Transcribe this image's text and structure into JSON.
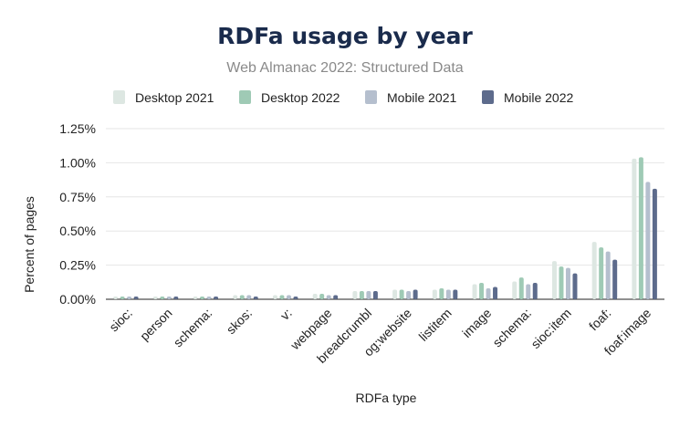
{
  "chart_data": {
    "type": "bar",
    "title": "RDFa usage by year",
    "subtitle": "Web Almanac 2022: Structured Data",
    "xlabel": "RDFa type",
    "ylabel": "Percent of pages",
    "ylim": [
      0,
      1.25
    ],
    "yticks": [
      "0.00%",
      "0.25%",
      "0.50%",
      "0.75%",
      "1.00%",
      "1.25%"
    ],
    "ytick_values": [
      0,
      0.25,
      0.5,
      0.75,
      1.0,
      1.25
    ],
    "grid": true,
    "legend_position": "top",
    "categories": [
      "sioc:",
      "person",
      "schema:",
      "skos:",
      "v:",
      "webpage",
      "breadcrumbl",
      "og:website",
      "listitem",
      "image",
      "schema:",
      "sioc:item",
      "foaf:",
      "foaf:image"
    ],
    "series": [
      {
        "name": "Desktop 2021",
        "color": "#dde7e2",
        "values": [
          0.02,
          0.02,
          0.02,
          0.03,
          0.03,
          0.04,
          0.06,
          0.07,
          0.07,
          0.11,
          0.13,
          0.28,
          0.42,
          1.03
        ]
      },
      {
        "name": "Desktop 2022",
        "color": "#9fcab5",
        "values": [
          0.02,
          0.02,
          0.02,
          0.03,
          0.03,
          0.04,
          0.06,
          0.07,
          0.08,
          0.12,
          0.16,
          0.24,
          0.38,
          1.04
        ]
      },
      {
        "name": "Mobile 2021",
        "color": "#b5bfce",
        "values": [
          0.02,
          0.02,
          0.02,
          0.03,
          0.03,
          0.03,
          0.06,
          0.06,
          0.07,
          0.08,
          0.11,
          0.23,
          0.35,
          0.86
        ]
      },
      {
        "name": "Mobile 2022",
        "color": "#5d6b8c",
        "values": [
          0.02,
          0.02,
          0.02,
          0.02,
          0.02,
          0.03,
          0.06,
          0.07,
          0.07,
          0.09,
          0.12,
          0.19,
          0.29,
          0.81
        ]
      }
    ]
  }
}
